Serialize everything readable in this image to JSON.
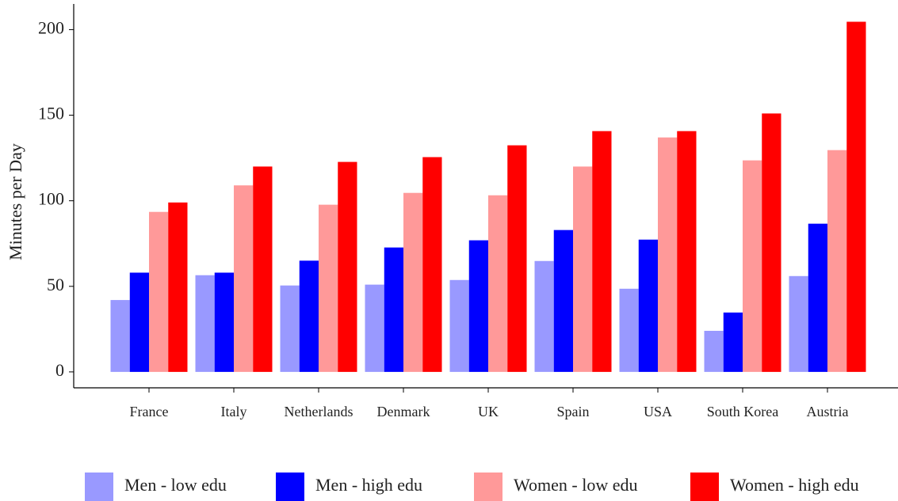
{
  "chart_data": {
    "type": "bar",
    "y_label": "Minutes per Day",
    "categories": [
      "France",
      "Italy",
      "Netherlands",
      "Denmark",
      "UK",
      "Spain",
      "USA",
      "South Korea",
      "Austria"
    ],
    "series": [
      {
        "name": "Men - low edu",
        "color": "#9999ff",
        "values": [
          42,
          56.5,
          50.5,
          51,
          53.7,
          64.8,
          48.6,
          24,
          56
        ]
      },
      {
        "name": "Men - high edu",
        "color": "#0000ff",
        "values": [
          58,
          58,
          65,
          72.7,
          76.9,
          82.9,
          77.3,
          34.7,
          86.6
        ]
      },
      {
        "name": "Women - low edu",
        "color": "#ff9999",
        "values": [
          93.5,
          109,
          97.7,
          104.6,
          103.2,
          120,
          137,
          123.6,
          129.6
        ]
      },
      {
        "name": "Women - high edu",
        "color": "#ff0000",
        "values": [
          99,
          120,
          122.7,
          125.5,
          132.4,
          140.7,
          140.7,
          151,
          204.6
        ]
      }
    ],
    "ylim": [
      -9.3,
      215
    ],
    "yticks": [
      0,
      50,
      100,
      150,
      200
    ],
    "legend": "bottom"
  }
}
